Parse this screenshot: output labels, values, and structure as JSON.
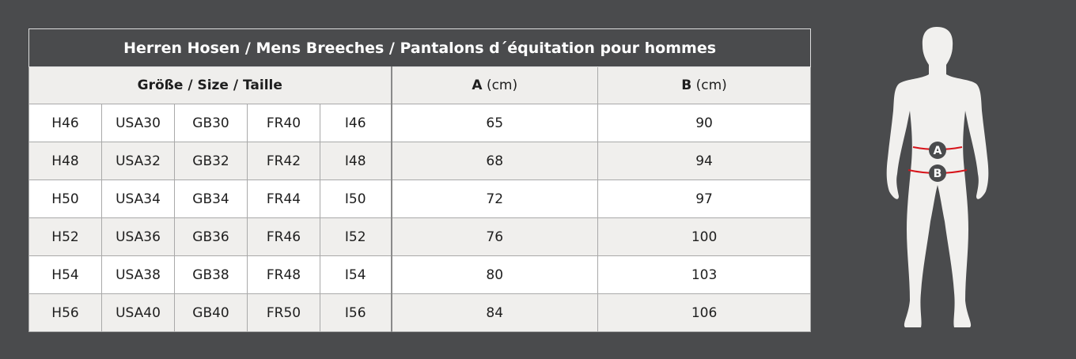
{
  "title": "Herren Hosen / Mens Breeches / Pantalons d´équitation pour hommes",
  "headers": {
    "size": "Größe / Size / Taille",
    "a_label": "A",
    "a_unit": "(cm)",
    "b_label": "B",
    "b_unit": "(cm)"
  },
  "rows": [
    {
      "h": "H46",
      "usa": "USA30",
      "gb": "GB30",
      "fr": "FR40",
      "i": "I46",
      "a": "65",
      "b": "90"
    },
    {
      "h": "H48",
      "usa": "USA32",
      "gb": "GB32",
      "fr": "FR42",
      "i": "I48",
      "a": "68",
      "b": "94"
    },
    {
      "h": "H50",
      "usa": "USA34",
      "gb": "GB34",
      "fr": "FR44",
      "i": "I50",
      "a": "72",
      "b": "97"
    },
    {
      "h": "H52",
      "usa": "USA36",
      "gb": "GB36",
      "fr": "FR46",
      "i": "I52",
      "a": "76",
      "b": "100"
    },
    {
      "h": "H54",
      "usa": "USA38",
      "gb": "GB38",
      "fr": "FR48",
      "i": "I54",
      "a": "80",
      "b": "103"
    },
    {
      "h": "H56",
      "usa": "USA40",
      "gb": "GB40",
      "fr": "FR50",
      "i": "I56",
      "a": "84",
      "b": "106"
    }
  ],
  "figure": {
    "marker_a": "A",
    "marker_b": "B",
    "line_color": "#d7141a"
  }
}
